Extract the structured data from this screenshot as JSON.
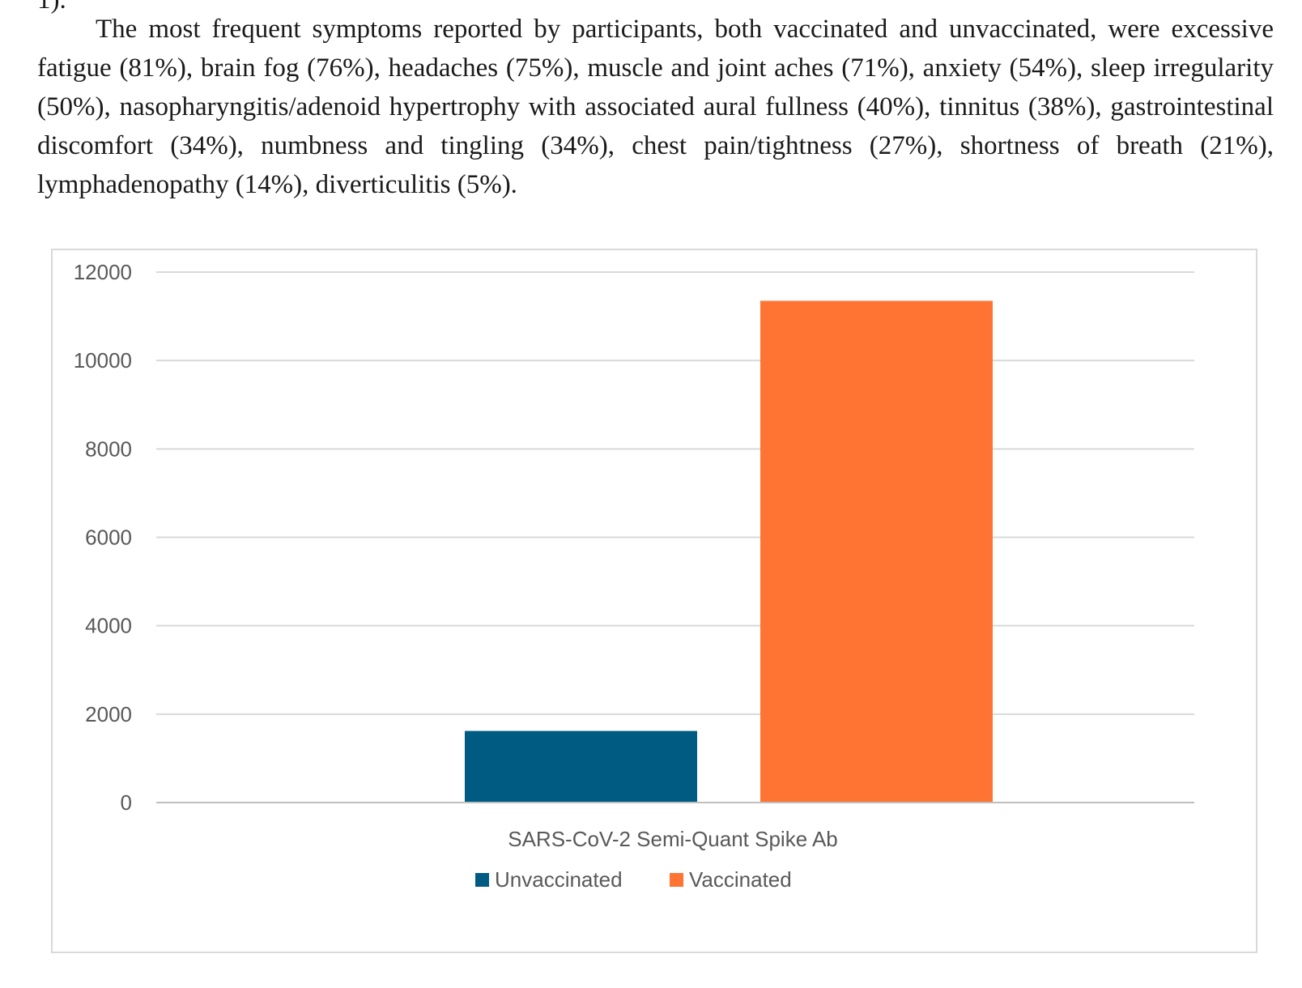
{
  "clipped_line": "1).",
  "paragraph": "The most frequent symptoms reported by participants, both vaccinated and unvaccinated, were excessive fatigue (81%), brain fog (76%), headaches (75%), muscle and joint aches (71%), anxiety (54%), sleep irregularity (50%), nasopharyngitis/adenoid hypertrophy with associated aural fullness (40%), tinnitus (38%), gastrointestinal discomfort (34%), numbness and tingling (34%), chest pain/tightness (27%), shortness of breath (21%), lymphadenopathy (14%), diverticulitis (5%).",
  "chart_data": {
    "type": "bar",
    "categories": [
      "SARS-CoV-2 Semi-Quant Spike Ab"
    ],
    "series": [
      {
        "name": "Unvaccinated",
        "values": [
          1620
        ],
        "color": "#005b82"
      },
      {
        "name": "Vaccinated",
        "values": [
          11350
        ],
        "color": "#ff7333"
      }
    ],
    "title": "",
    "xlabel": "",
    "ylabel": "",
    "ylim": [
      0,
      12000
    ],
    "yticks": [
      0,
      2000,
      4000,
      6000,
      8000,
      10000,
      12000
    ],
    "grid": true,
    "legend_position": "bottom"
  }
}
